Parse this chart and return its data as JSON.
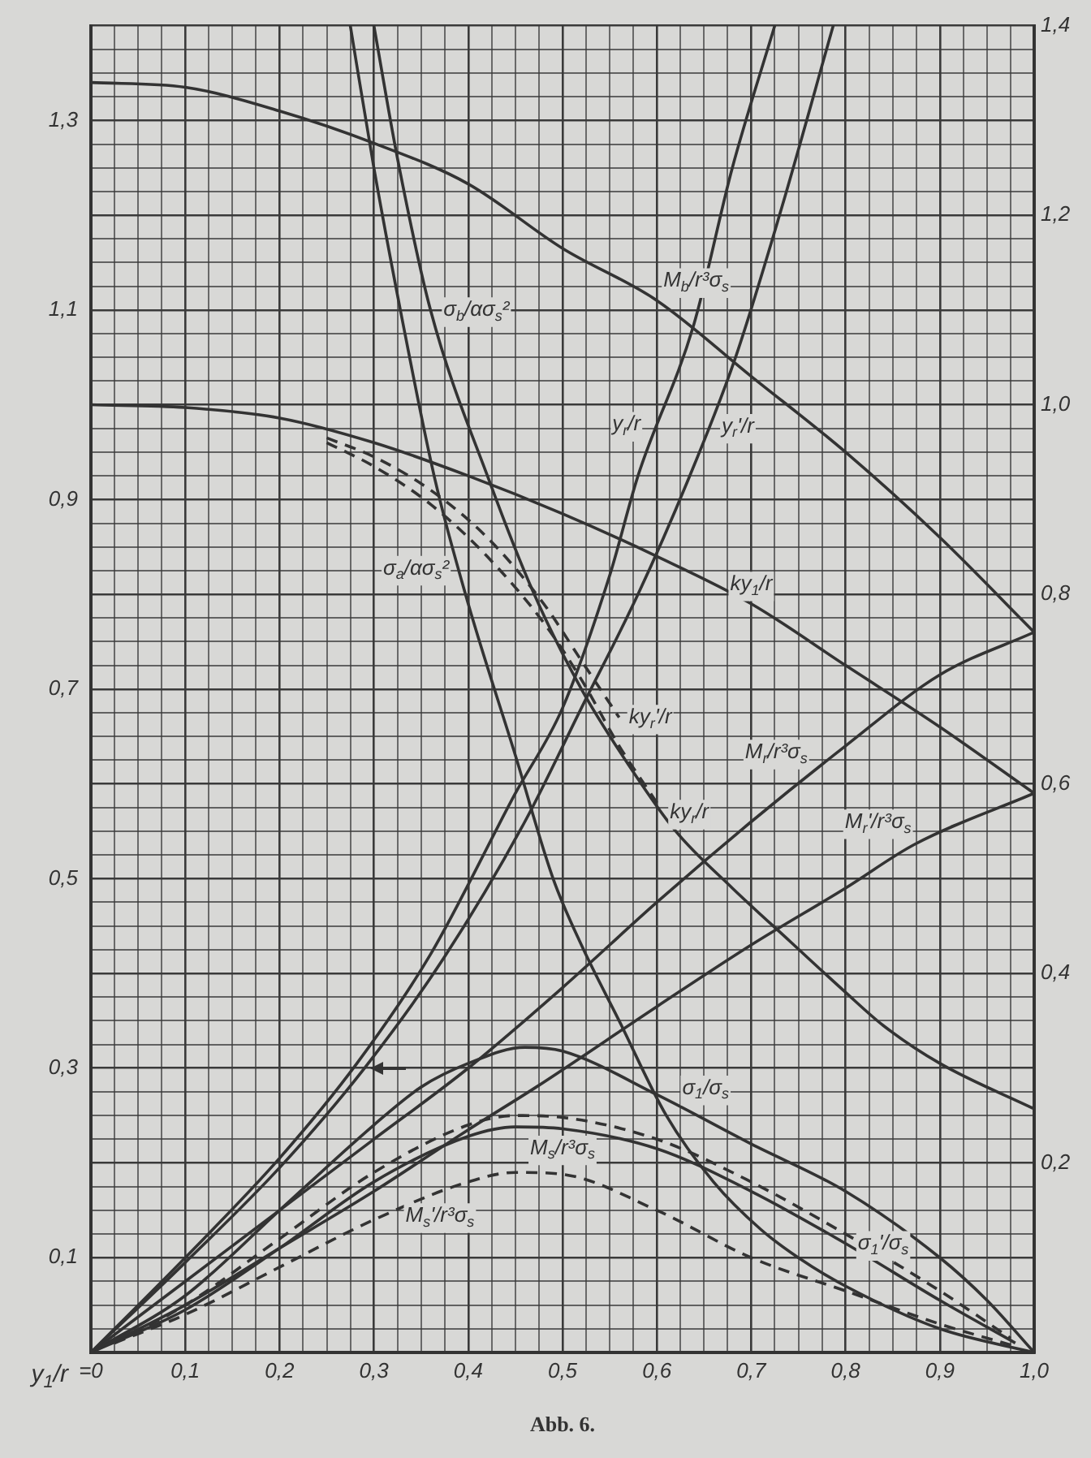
{
  "chart_data": {
    "type": "line",
    "xlabel": "y$_{1}$/r",
    "annotations": [
      "Abb. 6."
    ],
    "marker": "none",
    "line_style": "solid",
    "grid": true,
    "legend": false,
    "xlim": [
      0,
      1
    ],
    "ylim": [
      0,
      1.4
    ],
    "y2lim": [
      0,
      1.4
    ],
    "xticks": [
      {
        "value": 0,
        "label": "=0"
      },
      {
        "value": 0.025,
        "label": null
      },
      {
        "value": 0.05,
        "label": null
      },
      {
        "value": 0.075,
        "label": null
      },
      {
        "value": 0.1,
        "label": "0,1"
      },
      {
        "value": 0.125,
        "label": null
      },
      {
        "value": 0.15,
        "label": null
      },
      {
        "value": 0.175,
        "label": null
      },
      {
        "value": 0.2,
        "label": "0,2"
      },
      {
        "value": 0.225,
        "label": null
      },
      {
        "value": 0.25,
        "label": null
      },
      {
        "value": 0.275,
        "label": null
      },
      {
        "value": 0.3,
        "label": "0,3"
      },
      {
        "value": 0.325,
        "label": null
      },
      {
        "value": 0.35,
        "label": null
      },
      {
        "value": 0.375,
        "label": null
      },
      {
        "value": 0.4,
        "label": "0,4"
      },
      {
        "value": 0.425,
        "label": null
      },
      {
        "value": 0.45,
        "label": null
      },
      {
        "value": 0.475,
        "label": null
      },
      {
        "value": 0.5,
        "label": "0,5"
      },
      {
        "value": 0.525,
        "label": null
      },
      {
        "value": 0.55,
        "label": null
      },
      {
        "value": 0.575,
        "label": null
      },
      {
        "value": 0.6,
        "label": "0,6"
      },
      {
        "value": 0.625,
        "label": null
      },
      {
        "value": 0.65,
        "label": null
      },
      {
        "value": 0.675,
        "label": null
      },
      {
        "value": 0.7,
        "label": "0,7"
      },
      {
        "value": 0.725,
        "label": null
      },
      {
        "value": 0.75,
        "label": null
      },
      {
        "value": 0.775,
        "label": null
      },
      {
        "value": 0.8,
        "label": "0,8"
      },
      {
        "value": 0.825,
        "label": null
      },
      {
        "value": 0.85,
        "label": null
      },
      {
        "value": 0.875,
        "label": null
      },
      {
        "value": 0.9,
        "label": "0,9"
      },
      {
        "value": 0.925,
        "label": null
      },
      {
        "value": 0.95,
        "label": null
      },
      {
        "value": 0.975,
        "label": null
      },
      {
        "value": 1,
        "label": "1,0"
      }
    ],
    "yticks": [
      {
        "value": 0,
        "label": null
      },
      {
        "value": 0.025,
        "label": null
      },
      {
        "value": 0.05,
        "label": null
      },
      {
        "value": 0.075,
        "label": null
      },
      {
        "value": 0.1,
        "label": "0,1"
      },
      {
        "value": 0.125,
        "label": null
      },
      {
        "value": 0.15,
        "label": null
      },
      {
        "value": 0.175,
        "label": null
      },
      {
        "value": 0.2,
        "label": null
      },
      {
        "value": 0.225,
        "label": null
      },
      {
        "value": 0.25,
        "label": null
      },
      {
        "value": 0.275,
        "label": null
      },
      {
        "value": 0.3,
        "label": "0,3"
      },
      {
        "value": 0.325,
        "label": null
      },
      {
        "value": 0.35,
        "label": null
      },
      {
        "value": 0.375,
        "label": null
      },
      {
        "value": 0.4,
        "label": null
      },
      {
        "value": 0.425,
        "label": null
      },
      {
        "value": 0.45,
        "label": null
      },
      {
        "value": 0.475,
        "label": null
      },
      {
        "value": 0.5,
        "label": "0,5"
      },
      {
        "value": 0.525,
        "label": null
      },
      {
        "value": 0.55,
        "label": null
      },
      {
        "value": 0.575,
        "label": null
      },
      {
        "value": 0.6,
        "label": null
      },
      {
        "value": 0.625,
        "label": null
      },
      {
        "value": 0.65,
        "label": null
      },
      {
        "value": 0.675,
        "label": null
      },
      {
        "value": 0.7,
        "label": "0,7"
      },
      {
        "value": 0.725,
        "label": null
      },
      {
        "value": 0.75,
        "label": null
      },
      {
        "value": 0.775,
        "label": null
      },
      {
        "value": 0.8,
        "label": null
      },
      {
        "value": 0.825,
        "label": null
      },
      {
        "value": 0.85,
        "label": null
      },
      {
        "value": 0.875,
        "label": null
      },
      {
        "value": 0.9,
        "label": "0,9"
      },
      {
        "value": 0.925,
        "label": null
      },
      {
        "value": 0.95,
        "label": null
      },
      {
        "value": 0.975,
        "label": null
      },
      {
        "value": 1,
        "label": null
      },
      {
        "value": 1.025,
        "label": null
      },
      {
        "value": 1.05,
        "label": null
      },
      {
        "value": 1.075,
        "label": null
      },
      {
        "value": 1.1,
        "label": "1,1"
      },
      {
        "value": 1.125,
        "label": null
      },
      {
        "value": 1.15,
        "label": null
      },
      {
        "value": 1.175,
        "label": null
      },
      {
        "value": 1.2,
        "label": null
      },
      {
        "value": 1.225,
        "label": null
      },
      {
        "value": 1.25,
        "label": null
      },
      {
        "value": 1.275,
        "label": null
      },
      {
        "value": 1.3,
        "label": "1,3"
      },
      {
        "value": 1.325,
        "label": null
      },
      {
        "value": 1.35,
        "label": null
      },
      {
        "value": 1.375,
        "label": null
      },
      {
        "value": 1.4,
        "label": null
      }
    ],
    "y2ticks": [
      {
        "value": 0.2,
        "label": "0,2"
      },
      {
        "value": 0.4,
        "label": "0,4"
      },
      {
        "value": 0.6,
        "label": "0,6"
      },
      {
        "value": 0.8,
        "label": "0,8"
      },
      {
        "value": 1,
        "label": "1,0"
      },
      {
        "value": 1.2,
        "label": "1,2"
      },
      {
        "value": 1.4,
        "label": "1,4"
      }
    ],
    "series": [
      {
        "name": "M$_{b}$/r³σ$_{s}$",
        "color": "#333333",
        "x": [
          0,
          0.1,
          0.2,
          0.3,
          0.4,
          0.5,
          0.6,
          0.7,
          0.8,
          0.9,
          1
        ],
        "values": [
          1.34,
          1.335,
          1.31,
          1.276,
          1.233,
          1.165,
          1.11,
          1.03,
          0.95,
          0.86,
          0.76
        ]
      },
      {
        "name": "σ$_{b}$/ασ$_{s}$²",
        "color": "#333333",
        "x": [
          0.3,
          0.325,
          0.36,
          0.423,
          0.47,
          0.52,
          0.57,
          0.62,
          0.68,
          0.742,
          0.8,
          0.84,
          0.9,
          1
        ],
        "values": [
          1.4,
          1.26,
          1.1,
          0.918,
          0.8,
          0.7,
          0.62,
          0.55,
          0.49,
          0.433,
          0.38,
          0.345,
          0.305,
          0.257
        ]
      },
      {
        "name": "σ$_{a}$/ασ$_{s}$²",
        "color": "#333333",
        "x": [
          0.275,
          0.3,
          0.33,
          0.365,
          0.4,
          0.45,
          0.49,
          0.52,
          0.56,
          0.61,
          0.66,
          0.71,
          0.75,
          0.8,
          0.9,
          1
        ],
        "values": [
          1.4,
          1.25,
          1.09,
          0.92,
          0.79,
          0.63,
          0.5,
          0.43,
          0.35,
          0.25,
          0.18,
          0.13,
          0.1,
          0.07,
          0.025,
          0
        ]
      },
      {
        "name": "y$_{r}$/r",
        "color": "#333333",
        "x": [
          0,
          0.1,
          0.2,
          0.282,
          0.36,
          0.45,
          0.5,
          0.55,
          0.58,
          0.639,
          0.68,
          0.725
        ],
        "values": [
          0,
          0.1,
          0.205,
          0.305,
          0.42,
          0.59,
          0.68,
          0.82,
          0.925,
          1.084,
          1.25,
          1.4
        ]
      },
      {
        "name": "y$_{r}$'/r",
        "color": "#333333",
        "x": [
          0,
          0.1,
          0.2,
          0.29,
          0.374,
          0.46,
          0.52,
          0.58,
          0.632,
          0.682,
          0.73,
          0.787
        ],
        "values": [
          0,
          0.095,
          0.195,
          0.3,
          0.416,
          0.56,
          0.68,
          0.8,
          0.918,
          1.046,
          1.2,
          1.4
        ]
      },
      {
        "name": "ky$_{1}$/r",
        "color": "#333333",
        "x": [
          0,
          0.1,
          0.2,
          0.3,
          0.4,
          0.5,
          0.6,
          0.7,
          0.8,
          0.9,
          1
        ],
        "values": [
          1,
          0.997,
          0.986,
          0.96,
          0.925,
          0.885,
          0.84,
          0.79,
          0.725,
          0.66,
          0.59
        ]
      },
      {
        "name": "ky$_{r}$'/r",
        "color": "#333333",
        "line_style": "dashed",
        "x": [
          0.25,
          0.3,
          0.36,
          0.42,
          0.48,
          0.52,
          0.56
        ],
        "values": [
          0.965,
          0.945,
          0.91,
          0.86,
          0.79,
          0.73,
          0.67
        ]
      },
      {
        "name": "ky$_{r}$/r",
        "color": "#333333",
        "line_style": "dashed",
        "x": [
          0.25,
          0.3,
          0.36,
          0.42,
          0.48,
          0.52,
          0.56,
          0.6
        ],
        "values": [
          0.96,
          0.935,
          0.895,
          0.84,
          0.77,
          0.71,
          0.64,
          0.58
        ]
      },
      {
        "name": "M$_{r}$/r³σ$_{s}$",
        "color": "#333333",
        "x": [
          0,
          0.1,
          0.2,
          0.3,
          0.4,
          0.5,
          0.6,
          0.7,
          0.8,
          0.9,
          1
        ],
        "values": [
          0,
          0.075,
          0.15,
          0.225,
          0.3,
          0.385,
          0.475,
          0.56,
          0.64,
          0.715,
          0.76
        ]
      },
      {
        "name": "M$_{r}$'/r³σ$_{s}$",
        "color": "#333333",
        "x": [
          0,
          0.1,
          0.2,
          0.3,
          0.4,
          0.472,
          0.6,
          0.7,
          0.8,
          0.873,
          1
        ],
        "values": [
          0,
          0.05,
          0.11,
          0.17,
          0.235,
          0.28,
          0.365,
          0.43,
          0.49,
          0.536,
          0.59
        ]
      },
      {
        "name": "σ$_{1}$/σ$_{s}$",
        "color": "#333333",
        "x": [
          0,
          0.1,
          0.2,
          0.3,
          0.35,
          0.4,
          0.46,
          0.5,
          0.6,
          0.7,
          0.8,
          0.9,
          0.95,
          1
        ],
        "values": [
          0,
          0.06,
          0.15,
          0.24,
          0.28,
          0.305,
          0.322,
          0.318,
          0.272,
          0.22,
          0.17,
          0.1,
          0.055,
          0
        ]
      },
      {
        "name": "M$_{s}$/r³σ$_{s}$",
        "color": "#333333",
        "x": [
          0,
          0.1,
          0.2,
          0.3,
          0.4,
          0.45,
          0.5,
          0.6,
          0.7,
          0.8,
          0.9,
          0.98
        ],
        "values": [
          0,
          0.045,
          0.11,
          0.18,
          0.228,
          0.238,
          0.236,
          0.215,
          0.17,
          0.115,
          0.055,
          0.01
        ]
      },
      {
        "name": "σ$_{1}$'/σ$_{s}$",
        "color": "#333333",
        "line_style": "dashed",
        "x": [
          0.025,
          0.1,
          0.2,
          0.3,
          0.4,
          0.45,
          0.5,
          0.6,
          0.7,
          0.8,
          0.9,
          0.975
        ],
        "values": [
          0.01,
          0.05,
          0.12,
          0.19,
          0.24,
          0.25,
          0.248,
          0.225,
          0.18,
          0.125,
          0.065,
          0.015
        ]
      },
      {
        "name": "M$_{s}$'/r³σ$_{s}$",
        "color": "#333333",
        "line_style": "dashed",
        "x": [
          0.025,
          0.1,
          0.2,
          0.3,
          0.4,
          0.45,
          0.5,
          0.6,
          0.7,
          0.8,
          0.9,
          0.975
        ],
        "values": [
          0.01,
          0.04,
          0.09,
          0.14,
          0.18,
          0.19,
          0.188,
          0.15,
          0.1,
          0.065,
          0.03,
          0.008
        ]
      }
    ]
  }
}
